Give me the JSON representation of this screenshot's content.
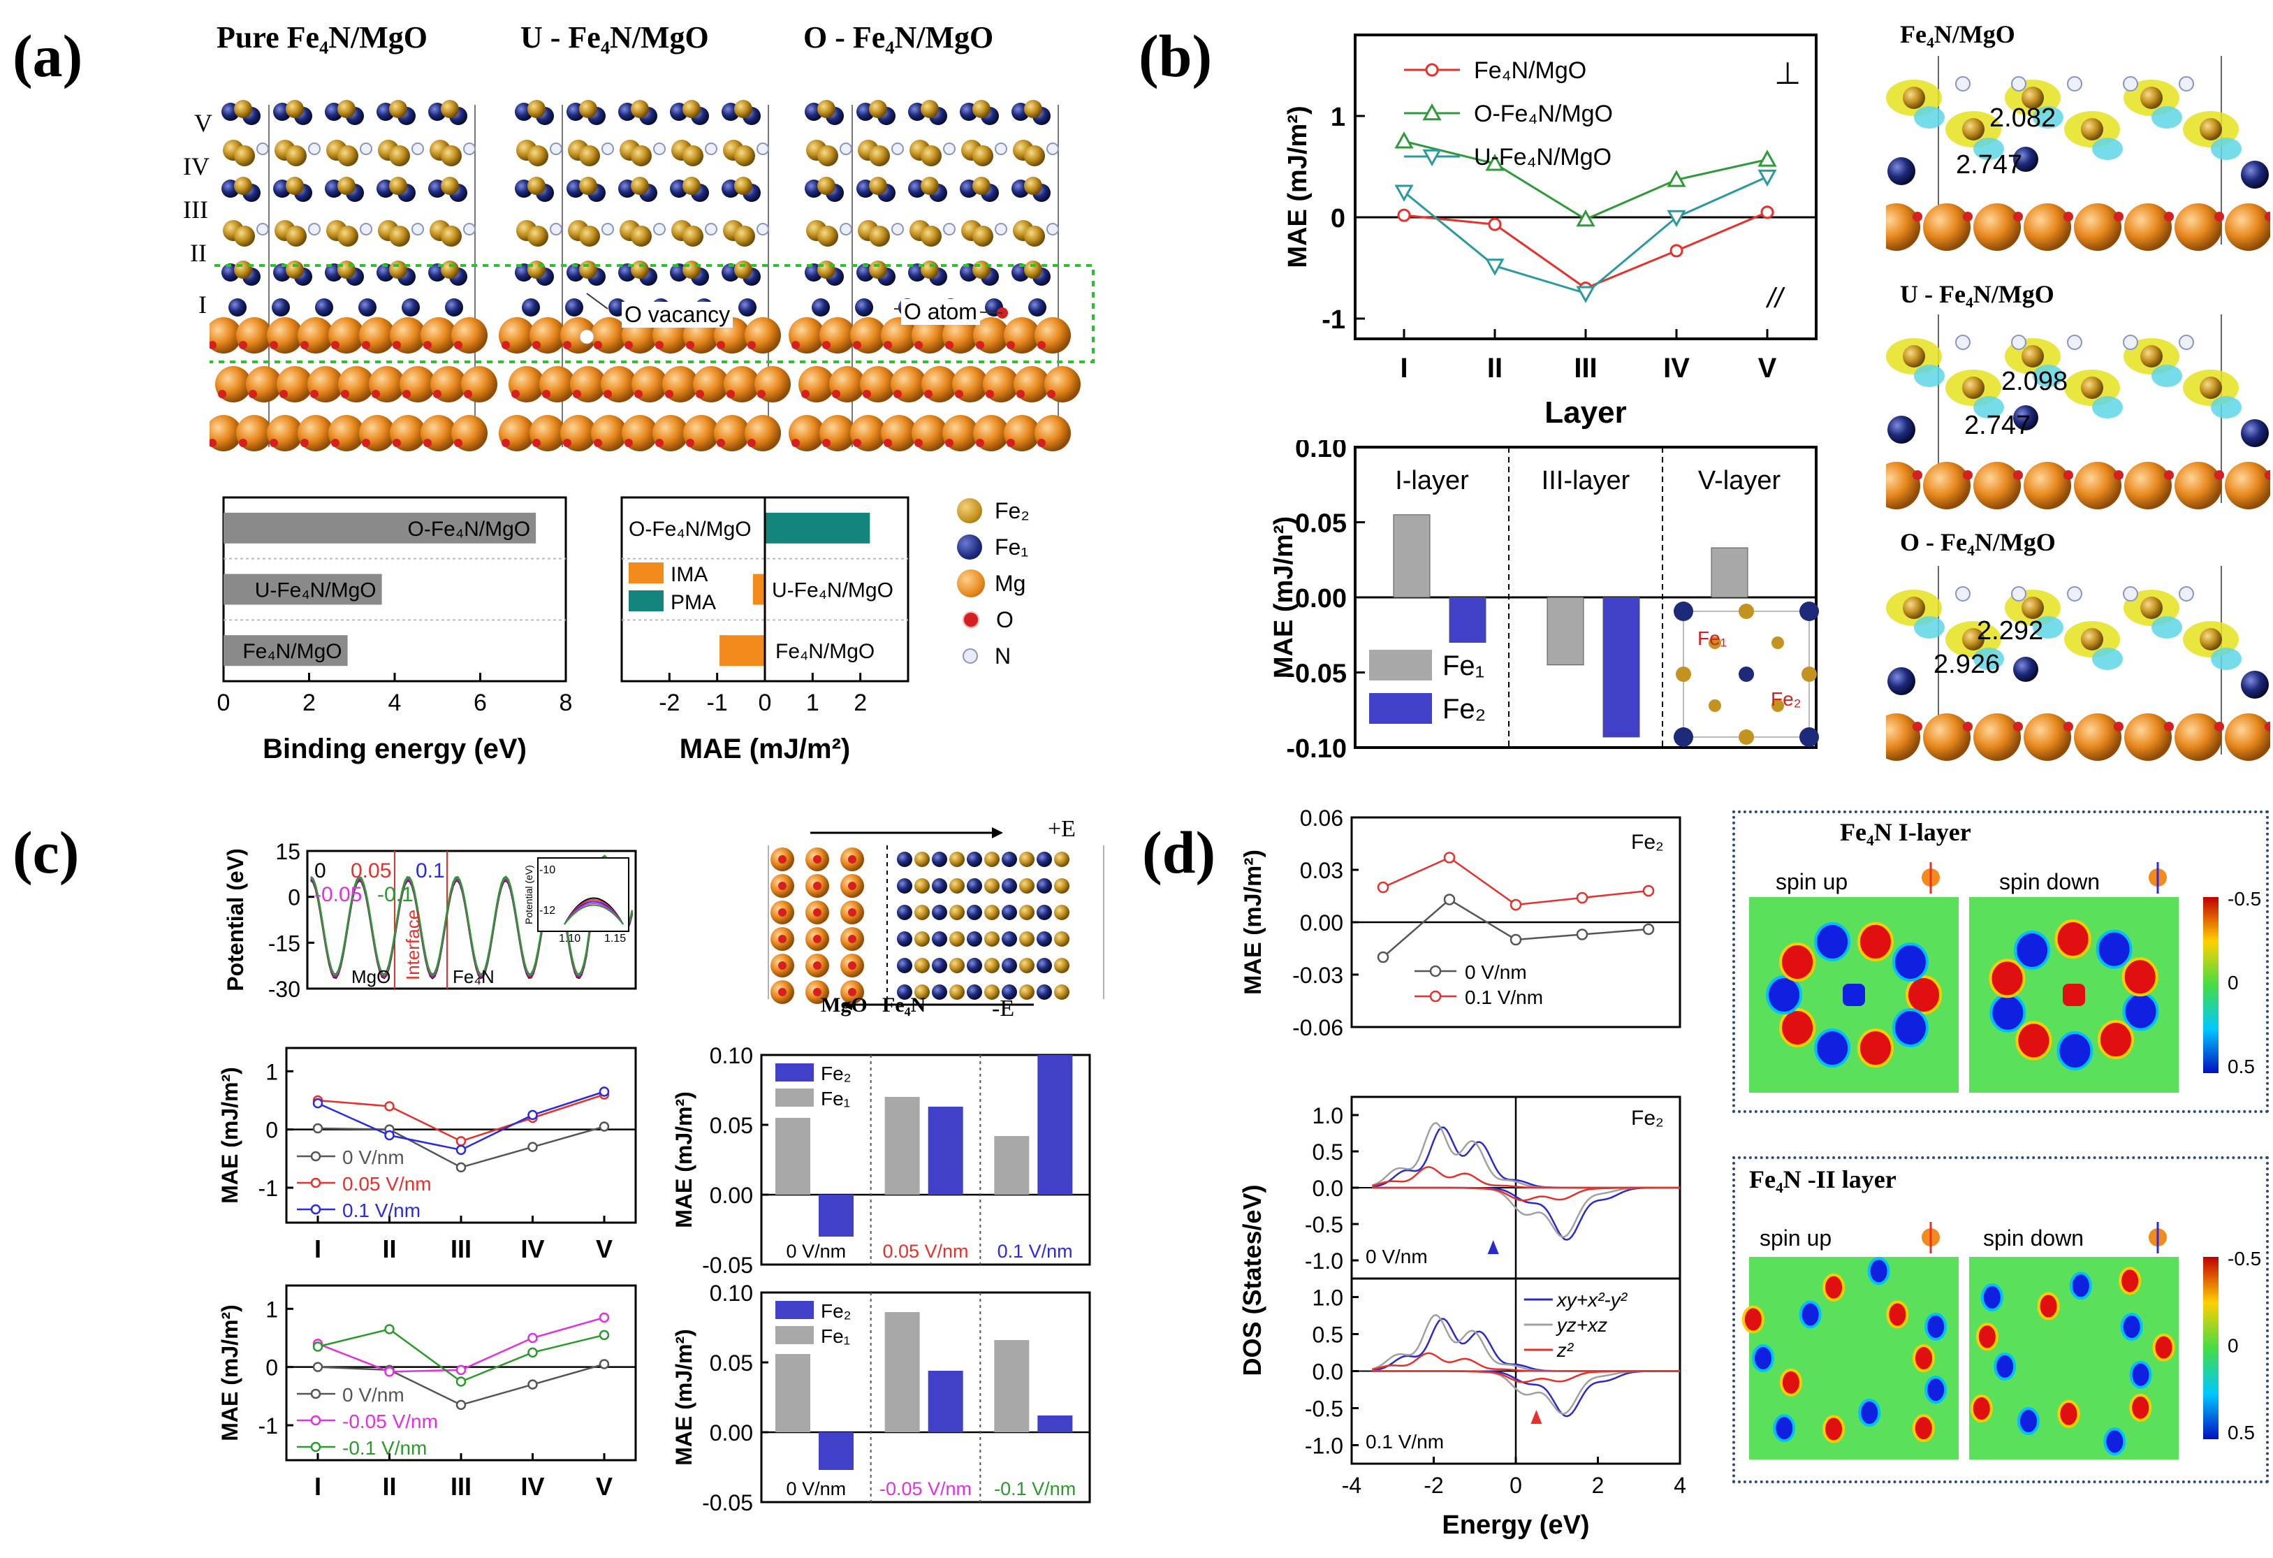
{
  "panels": {
    "a": {
      "label": "(a)",
      "titles": [
        "Pure Fe₄N/MgO",
        "U - Fe₄N/MgO",
        "O - Fe₄N/MgO"
      ],
      "layer_labels": [
        "V",
        "IV",
        "III",
        "II",
        "I"
      ],
      "notes": {
        "vacancy": "O vacancy",
        "atom": "O atom"
      },
      "legend": [
        {
          "label": "Fe₂",
          "name": "FeII",
          "color": "#c4921f"
        },
        {
          "label": "Fe₁",
          "name": "FeI",
          "color": "#1d2a7a"
        },
        {
          "label": "Mg",
          "name": "Mg",
          "color": "#e8891e"
        },
        {
          "label": "O",
          "name": "O",
          "color": "#d62020"
        },
        {
          "label": "N",
          "name": "N",
          "color": "#b7bfd9"
        }
      ]
    },
    "b": {
      "label": "(b)",
      "bond_titles": [
        "Fe₄N/MgO",
        "U - Fe₄N/MgO",
        "O - Fe₄N/MgO"
      ],
      "bonds": [
        [
          "2.082",
          "2.747"
        ],
        [
          "2.098",
          "2.747"
        ],
        [
          "2.292",
          "2.926"
        ]
      ]
    },
    "c": {
      "label": "(c)",
      "field_plus": "+E",
      "field_minus": "-E",
      "mgo": "MgO",
      "fe4n": "Fe₄N"
    },
    "d": {
      "label": "(d)",
      "map_titles": [
        "Fe₄N I-layer",
        "Fe₄N -II layer"
      ],
      "spin_up": "spin up",
      "spin_down": "spin down",
      "colorbar_ticks": [
        "-0.5",
        "0",
        "0.5"
      ]
    }
  },
  "chart_data": [
    {
      "id": "a-binding",
      "type": "bar",
      "orientation": "horizontal",
      "categories": [
        "O-Fe₄N/MgO",
        "U-Fe₄N/MgO",
        "Fe₄N/MgO"
      ],
      "values": [
        7.3,
        3.7,
        2.9
      ],
      "xlim": [
        0,
        8
      ],
      "xticks": [
        "0",
        "2",
        "4",
        "6",
        "8"
      ],
      "xlabel": "Binding energy (eV)",
      "color": "#8a8a8a"
    },
    {
      "id": "a-mae",
      "type": "bar",
      "orientation": "horizontal",
      "categories": [
        "O-Fe₄N/MgO",
        "U-Fe₄N/MgO",
        "Fe₄N/MgO"
      ],
      "values": [
        2.2,
        -0.25,
        -0.95
      ],
      "xlim": [
        -3,
        3
      ],
      "xticks": [
        "-2",
        "-1",
        "0",
        "1",
        "2"
      ],
      "xlabel": "MAE (mJ/m²)",
      "legend": [
        "IMA",
        "PMA"
      ],
      "colors": {
        "IMA": "#f28a1c",
        "PMA": "#13857c"
      }
    },
    {
      "id": "b-layer",
      "type": "line",
      "categories": [
        "I",
        "II",
        "III",
        "IV",
        "V"
      ],
      "series": [
        {
          "name": "Fe₄N/MgO",
          "values": [
            0.02,
            -0.07,
            -0.7,
            -0.33,
            0.05
          ],
          "color": "#e8302a",
          "marker": "circle"
        },
        {
          "name": "O-Fe₄N/MgO",
          "values": [
            0.75,
            0.53,
            -0.02,
            0.37,
            0.57
          ],
          "color": "#2f9a3a",
          "marker": "triangle-up"
        },
        {
          "name": "U-Fe₄N/MgO",
          "values": [
            0.25,
            -0.48,
            -0.75,
            0.0,
            0.4
          ],
          "color": "#2a9a9c",
          "marker": "triangle-down"
        }
      ],
      "ylim": [
        -1.2,
        1.8
      ],
      "yticks": [
        "-1",
        "0",
        "1"
      ],
      "xlabel": "Layer",
      "ylabel": "MAE (mJ/m²)",
      "annotations": [
        "⊥",
        "//"
      ]
    },
    {
      "id": "b-bars",
      "type": "bar",
      "groups": [
        "I-layer",
        "III-layer",
        "V-layer"
      ],
      "series": [
        {
          "name": "Fe₁",
          "values": [
            0.055,
            -0.045,
            0.033
          ],
          "color": "#a8a8a8"
        },
        {
          "name": "Fe₂",
          "values": [
            -0.03,
            -0.093,
            null
          ],
          "color": "#4040c8"
        }
      ],
      "ylim": [
        -0.1,
        0.1
      ],
      "yticks": [
        "0.10",
        "0.05",
        "0.00",
        "-0.05",
        "-0.10"
      ],
      "ylabel": "MAE (mJ/m²)",
      "inset_labels": {
        "fe1": "Fe₁",
        "fe2": "Fe₂"
      }
    },
    {
      "id": "c-potential",
      "type": "line",
      "xlabel": "",
      "ylabel": "Potential (eV)",
      "yticks": [
        "15",
        "0",
        "-15",
        "-30"
      ],
      "ylim": [
        -30,
        15
      ],
      "legend": [
        {
          "name": "0",
          "color": "#000000"
        },
        {
          "name": "0.05",
          "color": "#e8302a"
        },
        {
          "name": "0.1",
          "color": "#2a2ae0"
        },
        {
          "name": "-0.05",
          "color": "#e030e0"
        },
        {
          "name": "-0.1",
          "color": "#2a9a2a"
        }
      ],
      "annotations": [
        "MgO",
        "Interface",
        "Fe₄N"
      ],
      "inset": {
        "ylabel": "Potential (eV)",
        "yticks": [
          "-10",
          "-12"
        ],
        "xticks": [
          "1.10",
          "1.15"
        ]
      }
    },
    {
      "id": "c-line-pos",
      "type": "line",
      "categories": [
        "I",
        "II",
        "III",
        "IV",
        "V"
      ],
      "series": [
        {
          "name": "0 V/nm",
          "values": [
            0.02,
            0.0,
            -0.65,
            -0.3,
            0.05
          ],
          "color": "#555555"
        },
        {
          "name": "0.05 V/nm",
          "values": [
            0.5,
            0.4,
            -0.2,
            0.2,
            0.6
          ],
          "color": "#e8302a"
        },
        {
          "name": "0.1 V/nm",
          "values": [
            0.45,
            -0.1,
            -0.35,
            0.25,
            0.65
          ],
          "color": "#2a2ae0"
        }
      ],
      "ylim": [
        -1.6,
        1.4
      ],
      "yticks": [
        "1",
        "0",
        "-1"
      ],
      "ylabel": "MAE (mJ/m²)"
    },
    {
      "id": "c-bar-pos",
      "type": "bar",
      "groups": [
        "0 V/nm",
        "0.05 V/nm",
        "0.1 V/nm"
      ],
      "group_colors": [
        "#000000",
        "#e8302a",
        "#2a2ae0"
      ],
      "series": [
        {
          "name": "Fe₁",
          "values": [
            0.055,
            0.07,
            0.042
          ],
          "color": "#a8a8a8"
        },
        {
          "name": "Fe₂",
          "values": [
            -0.03,
            0.063,
            0.1
          ],
          "color": "#4040c8"
        }
      ],
      "ylim": [
        -0.05,
        0.1
      ],
      "yticks": [
        "0.10",
        "0.05",
        "0.00",
        "-0.05"
      ],
      "ylabel": "MAE (mJ/m²)"
    },
    {
      "id": "c-line-neg",
      "type": "line",
      "categories": [
        "I",
        "II",
        "III",
        "IV",
        "V"
      ],
      "series": [
        {
          "name": "0 V/nm",
          "values": [
            0.0,
            -0.05,
            -0.65,
            -0.3,
            0.05
          ],
          "color": "#555555"
        },
        {
          "name": "-0.05 V/nm",
          "values": [
            0.4,
            -0.08,
            -0.05,
            0.5,
            0.85
          ],
          "color": "#e030e0"
        },
        {
          "name": "-0.1 V/nm",
          "values": [
            0.35,
            0.65,
            -0.25,
            0.25,
            0.55
          ],
          "color": "#2a9a2a"
        }
      ],
      "ylim": [
        -1.6,
        1.4
      ],
      "yticks": [
        "1",
        "0",
        "-1"
      ],
      "ylabel": "MAE (mJ/m²)"
    },
    {
      "id": "c-bar-neg",
      "type": "bar",
      "groups": [
        "0 V/nm",
        "-0.05 V/nm",
        "-0.1 V/nm"
      ],
      "group_colors": [
        "#000000",
        "#e030e0",
        "#2a9a2a"
      ],
      "series": [
        {
          "name": "Fe₁",
          "values": [
            0.056,
            0.086,
            0.066
          ],
          "color": "#a8a8a8"
        },
        {
          "name": "Fe₂",
          "values": [
            -0.027,
            0.044,
            0.012
          ],
          "color": "#4040c8"
        }
      ],
      "ylim": [
        -0.05,
        0.1
      ],
      "yticks": [
        "0.10",
        "0.05",
        "0.00",
        "-0.05"
      ],
      "ylabel": "MAE (mJ/m²)"
    },
    {
      "id": "d-mae",
      "type": "line",
      "title": "Fe₂",
      "series": [
        {
          "name": "0 V/nm",
          "values": [
            -0.02,
            0.013,
            -0.01,
            -0.007,
            -0.004
          ],
          "color": "#555555"
        },
        {
          "name": "0.1 V/nm",
          "values": [
            0.02,
            0.037,
            0.01,
            0.014,
            0.018
          ],
          "color": "#e8302a"
        }
      ],
      "ylim": [
        -0.06,
        0.06
      ],
      "yticks": [
        "0.06",
        "0.03",
        "0.00",
        "-0.03",
        "-0.06"
      ],
      "ylabel": "MAE (mJ/m²)"
    },
    {
      "id": "d-dos",
      "type": "line",
      "title": "Fe₂",
      "xlabel": "Energy (eV)",
      "ylabel": "DOS (States/eV)",
      "xlim": [
        -4,
        4
      ],
      "xticks": [
        "-4",
        "-2",
        "0",
        "2",
        "4"
      ],
      "subplots": [
        "0 V/nm",
        "0.1 V/nm"
      ],
      "yticks_top": [
        "1.0",
        "0.5",
        "0.0",
        "-0.5",
        "-1.0"
      ],
      "yticks_bottom": [
        "1.0",
        "0.5",
        "0.0",
        "-0.5",
        "-1.0"
      ],
      "series": [
        {
          "name": "xy+x²-y²",
          "color": "#2a2ac8"
        },
        {
          "name": "yz+xz",
          "color": "#a0a0a0"
        },
        {
          "name": "z²",
          "color": "#e8302a"
        }
      ]
    }
  ]
}
